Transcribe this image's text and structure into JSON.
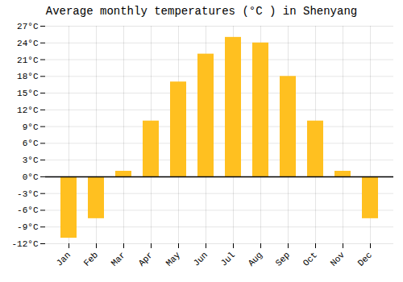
{
  "chart_data": {
    "type": "bar",
    "title": "Average monthly temperatures (°C ) in Shenyang",
    "categories": [
      "Jan",
      "Feb",
      "Mar",
      "Apr",
      "May",
      "Jun",
      "Jul",
      "Aug",
      "Sep",
      "Oct",
      "Nov",
      "Dec"
    ],
    "values": [
      -11,
      -7.5,
      1,
      10,
      17,
      22,
      25,
      24,
      18,
      10,
      1,
      -7.5
    ],
    "color": "#FFC020",
    "ylim": [
      -12,
      27
    ],
    "yticks": [
      {
        "value": -12,
        "label": "-12°C"
      },
      {
        "value": -9,
        "label": "-9°C"
      },
      {
        "value": -6,
        "label": "-6°C"
      },
      {
        "value": -3,
        "label": "-3°C"
      },
      {
        "value": 0,
        "label": "0°C"
      },
      {
        "value": 3,
        "label": "3°C"
      },
      {
        "value": 6,
        "label": "6°C"
      },
      {
        "value": 9,
        "label": "9°C"
      },
      {
        "value": 12,
        "label": "12°C"
      },
      {
        "value": 15,
        "label": "15°C"
      },
      {
        "value": 18,
        "label": "18°C"
      },
      {
        "value": 21,
        "label": "21°C"
      },
      {
        "value": 24,
        "label": "24°C"
      },
      {
        "value": 27,
        "label": "27°C"
      }
    ],
    "grid": true
  }
}
